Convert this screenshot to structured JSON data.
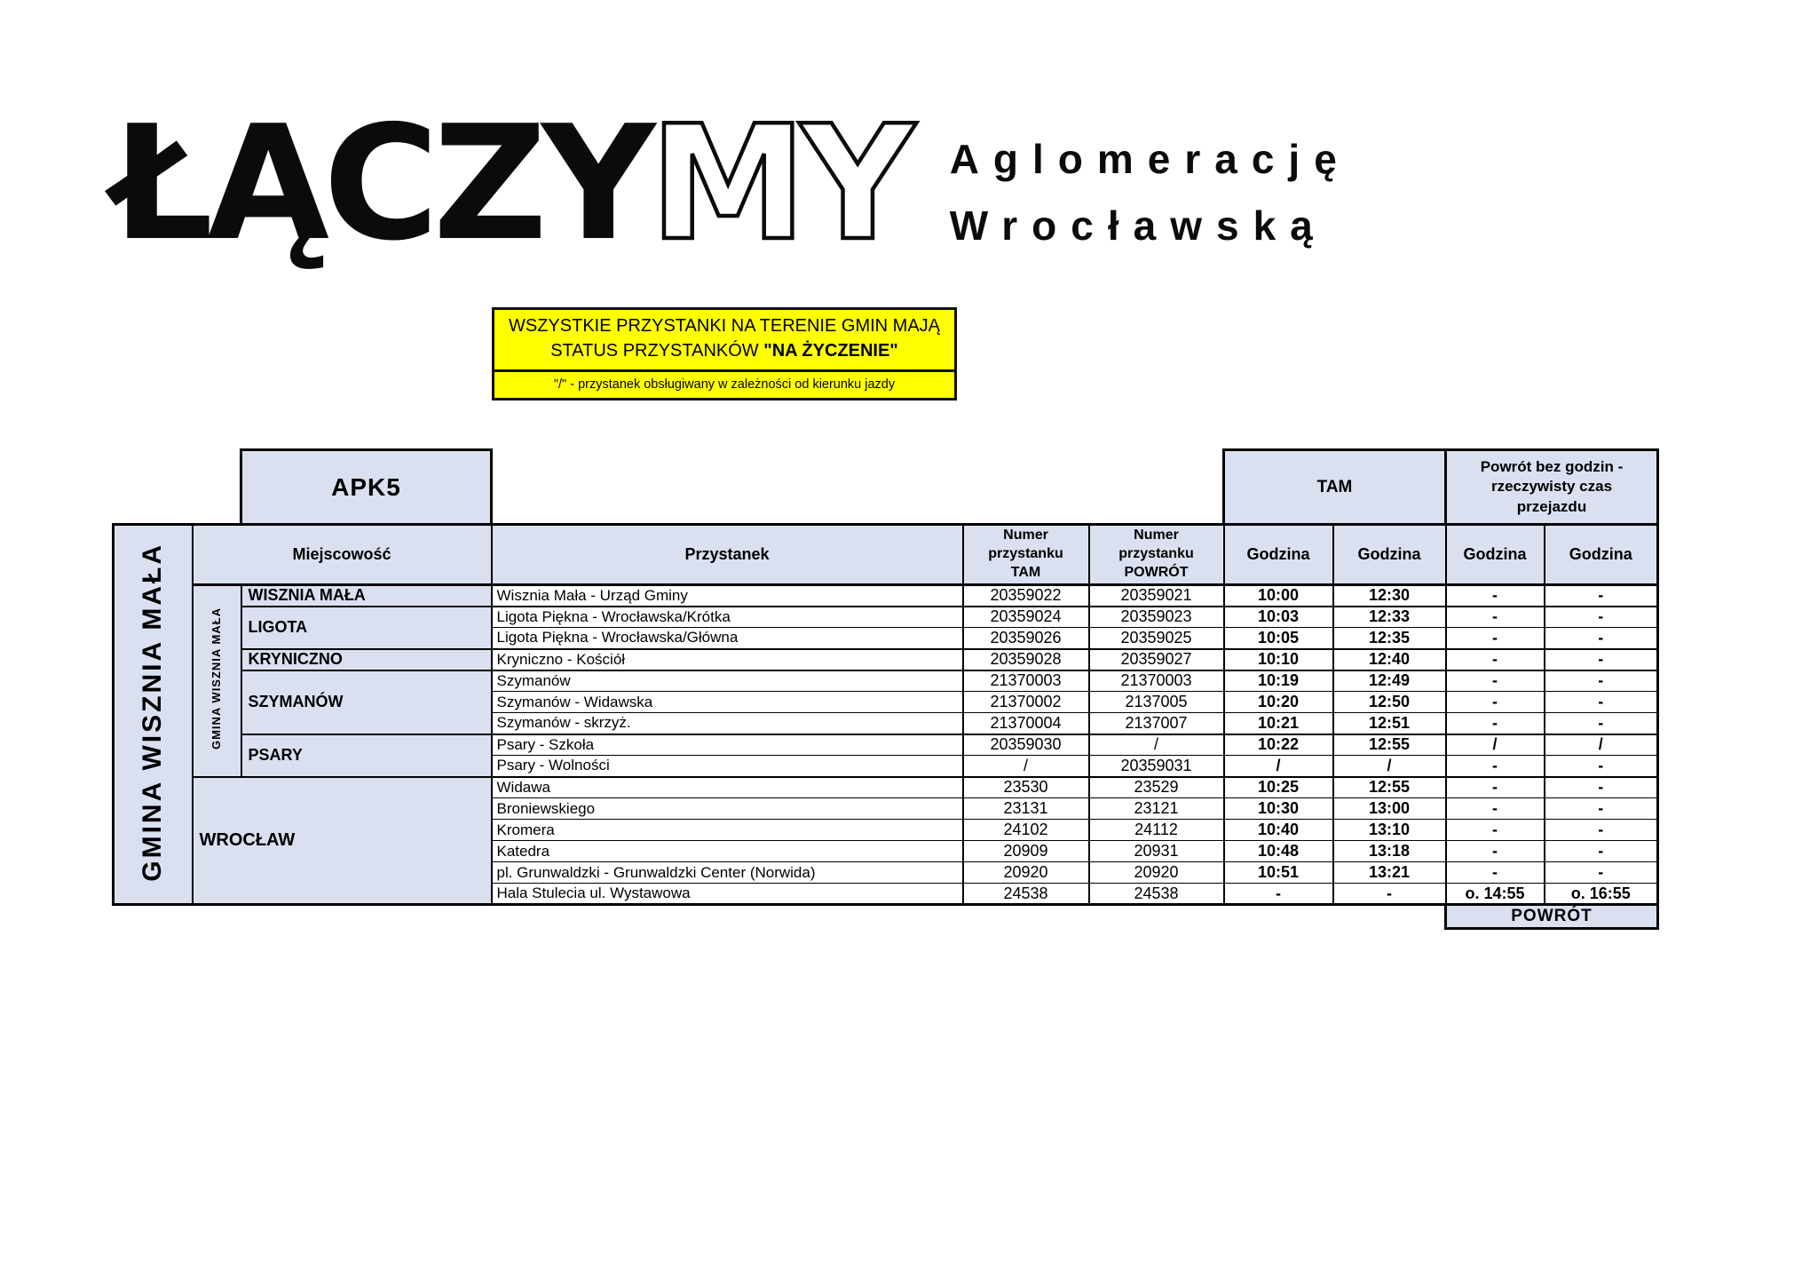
{
  "logo": {
    "solid": "ŁĄCZY",
    "outline": "MY",
    "tagline_line1": "Aglomerację",
    "tagline_line2": "Wrocławską"
  },
  "notice": {
    "line1": "WSZYSTKIE PRZYSTANKI NA TERENIE GMIN MAJĄ",
    "line2_prefix": "STATUS PRZYSTANKÓW ",
    "line2_bold": "\"NA ŻYCZENIE\"",
    "legend": "\"/\" - przystanek obsługiwany w zależności od kierunku jazdy"
  },
  "table": {
    "route_code": "APK5",
    "region_label": "GMINA WISZNIA MAŁA",
    "headers": {
      "miejscowosc": "Miejscowość",
      "przystanek": "Przystanek",
      "nr_tam": "Numer\nprzystanku\nTAM",
      "nr_powrot": "Numer\nprzystanku\nPOWRÓT",
      "godzina": "Godzina",
      "tam": "TAM",
      "powrot_group": "Powrót bez godzin - rzeczywisty czas przejazdu",
      "powrot_footer": "POWRÓT"
    },
    "groups": [
      {
        "label": "GMINA WISZNIA MAŁA",
        "places": [
          {
            "name": "WISZNIA MAŁA",
            "span": 1
          },
          {
            "name": "LIGOTA",
            "span": 2
          },
          {
            "name": "KRYNICZNO",
            "span": 1
          },
          {
            "name": "SZYMANÓW",
            "span": 3
          },
          {
            "name": "PSARY",
            "span": 2
          }
        ]
      },
      {
        "label": "WROCŁAW",
        "span": 6
      }
    ],
    "rows": [
      {
        "stop": "Wisznia Mała - Urząd Gminy",
        "nr_tam": "20359022",
        "nr_powrot": "20359021",
        "tam1": "10:00",
        "tam2": "12:30",
        "pow1": "-",
        "pow2": "-"
      },
      {
        "stop": "Ligota Piękna - Wrocławska/Krótka",
        "nr_tam": "20359024",
        "nr_powrot": "20359023",
        "tam1": "10:03",
        "tam2": "12:33",
        "pow1": "-",
        "pow2": "-"
      },
      {
        "stop": "Ligota Piękna - Wrocławska/Główna",
        "nr_tam": "20359026",
        "nr_powrot": "20359025",
        "tam1": "10:05",
        "tam2": "12:35",
        "pow1": "-",
        "pow2": "-"
      },
      {
        "stop": "Kryniczno - Kościół",
        "nr_tam": "20359028",
        "nr_powrot": "20359027",
        "tam1": "10:10",
        "tam2": "12:40",
        "pow1": "-",
        "pow2": "-"
      },
      {
        "stop": "Szymanów",
        "nr_tam": "21370003",
        "nr_powrot": "21370003",
        "tam1": "10:19",
        "tam2": "12:49",
        "pow1": "-",
        "pow2": "-"
      },
      {
        "stop": "Szymanów - Widawska",
        "nr_tam": "21370002",
        "nr_powrot": "2137005",
        "tam1": "10:20",
        "tam2": "12:50",
        "pow1": "-",
        "pow2": "-"
      },
      {
        "stop": "Szymanów - skrzyż.",
        "nr_tam": "21370004",
        "nr_powrot": "2137007",
        "tam1": "10:21",
        "tam2": "12:51",
        "pow1": "-",
        "pow2": "-"
      },
      {
        "stop": "Psary - Szkoła",
        "nr_tam": "20359030",
        "nr_powrot": "/",
        "tam1": "10:22",
        "tam2": "12:55",
        "pow1": "/",
        "pow2": "/"
      },
      {
        "stop": "Psary - Wolności",
        "nr_tam": "/",
        "nr_powrot": "20359031",
        "tam1": "/",
        "tam2": "/",
        "pow1": "-",
        "pow2": "-"
      },
      {
        "stop": "Widawa",
        "nr_tam": "23530",
        "nr_powrot": "23529",
        "tam1": "10:25",
        "tam2": "12:55",
        "pow1": "-",
        "pow2": "-"
      },
      {
        "stop": "Broniewskiego",
        "nr_tam": "23131",
        "nr_powrot": "23121",
        "tam1": "10:30",
        "tam2": "13:00",
        "pow1": "-",
        "pow2": "-"
      },
      {
        "stop": "Kromera",
        "nr_tam": "24102",
        "nr_powrot": "24112",
        "tam1": "10:40",
        "tam2": "13:10",
        "pow1": "-",
        "pow2": "-"
      },
      {
        "stop": "Katedra",
        "nr_tam": "20909",
        "nr_powrot": "20931",
        "tam1": "10:48",
        "tam2": "13:18",
        "pow1": "-",
        "pow2": "-"
      },
      {
        "stop": "pl. Grunwaldzki - Grunwaldzki Center (Norwida)",
        "nr_tam": "20920",
        "nr_powrot": "20920",
        "tam1": "10:51",
        "tam2": "13:21",
        "pow1": "-",
        "pow2": "-"
      },
      {
        "stop": "Hala Stulecia ul. Wystawowa",
        "nr_tam": "24538",
        "nr_powrot": "24538",
        "tam1": "-",
        "tam2": "-",
        "pow1": "o. 14:55",
        "pow2": "o. 16:55"
      }
    ]
  }
}
